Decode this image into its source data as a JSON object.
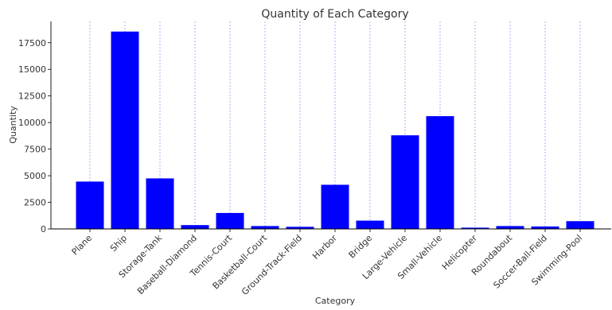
{
  "chart_data": {
    "type": "bar",
    "title": "Quantity of Each Category",
    "xlabel": "Category",
    "ylabel": "Quantity",
    "ylim": [
      0,
      19500
    ],
    "yticks": [
      0,
      2500,
      5000,
      7500,
      10000,
      12500,
      15000,
      17500
    ],
    "grid": "vertical dashed",
    "bar_color": "#0000ff",
    "categories": [
      "Plane",
      "Ship",
      "Storage-Tank",
      "Baseball-Diamond",
      "Tennis-Court",
      "Basketball-Court",
      "Ground-Track-Field",
      "Harbor",
      "Bridge",
      "Large-Vehicle",
      "Small-Vehicle",
      "Helicopter",
      "Roundabout",
      "Soccer-Ball-Field",
      "Swimming-Pool"
    ],
    "values": [
      4450,
      18550,
      4750,
      360,
      1500,
      270,
      200,
      4150,
      780,
      8800,
      10600,
      120,
      270,
      230,
      730
    ]
  }
}
